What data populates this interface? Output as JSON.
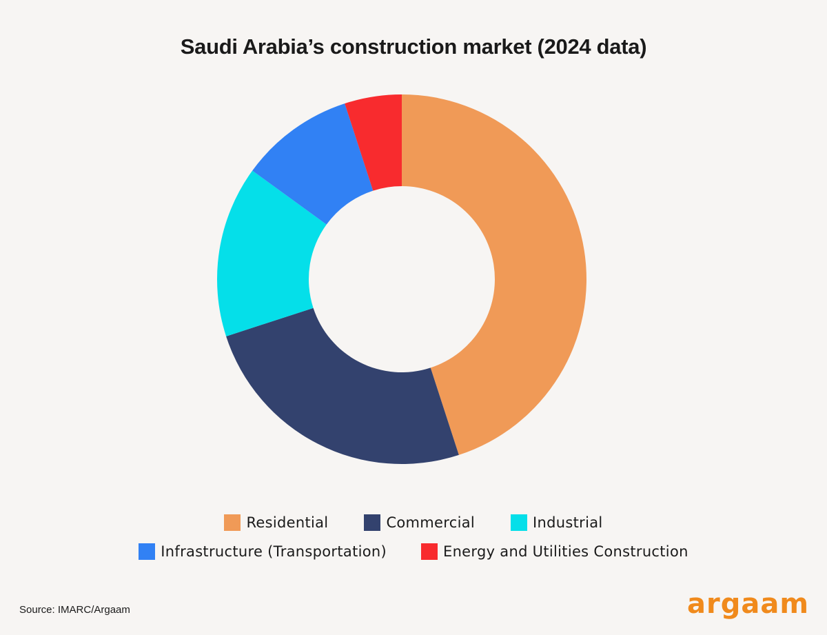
{
  "title": "Saudi Arabia’s construction market (2024 data)",
  "chart_data": {
    "type": "pie",
    "subtype": "donut",
    "title": "Saudi Arabia’s construction market (2024 data)",
    "categories": [
      "Residential",
      "Commercial",
      "Industrial",
      "Infrastructure (Transportation)",
      "Energy and Utilities Construction"
    ],
    "values": [
      45,
      25,
      15,
      10,
      5
    ],
    "unit": "% share (estimated from slice angles)",
    "colors": [
      "#f09a57",
      "#33426e",
      "#05dfe9",
      "#3181f4",
      "#f82b2e"
    ],
    "start_angle": "12 o'clock, clockwise",
    "legend_position": "bottom",
    "data_labels": false
  },
  "legend": {
    "row1": [
      {
        "label": "Residential",
        "color": "#f09a57"
      },
      {
        "label": "Commercial",
        "color": "#33426e"
      },
      {
        "label": "Industrial",
        "color": "#05dfe9"
      }
    ],
    "row2": [
      {
        "label": "Infrastructure (Transportation)",
        "color": "#3181f4"
      },
      {
        "label": "Energy and Utilities Construction",
        "color": "#f82b2e"
      }
    ]
  },
  "footer": {
    "source": "Source: IMARC/Argaam",
    "logo": "argaam",
    "logo_color": "#f08a1c"
  }
}
